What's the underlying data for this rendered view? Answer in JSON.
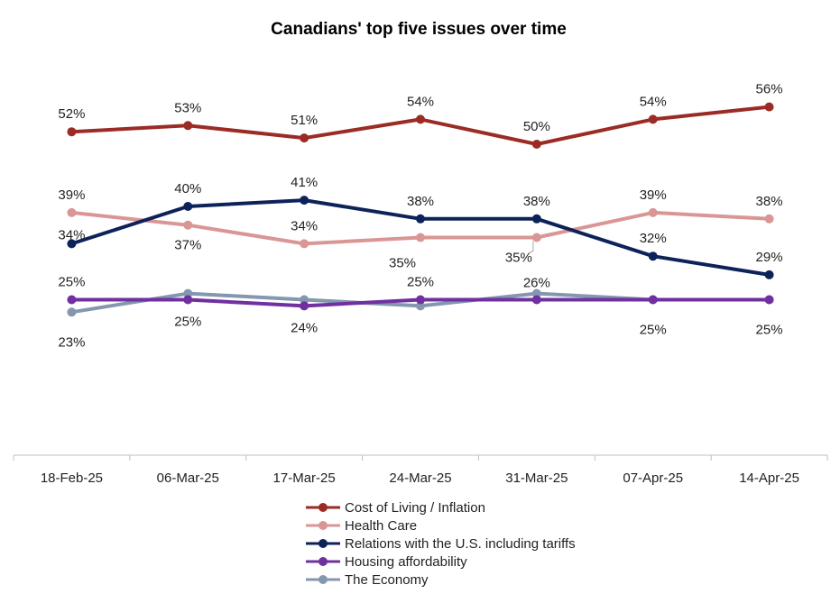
{
  "chart_data": {
    "type": "line",
    "title": "Canadians' top five issues over time",
    "xlabel": "",
    "ylabel": "",
    "categories": [
      "18-Feb-25",
      "06-Mar-25",
      "17-Mar-25",
      "24-Mar-25",
      "31-Mar-25",
      "07-Apr-25",
      "14-Apr-25"
    ],
    "ylim": [
      0,
      60
    ],
    "grid": false,
    "legend_position": "bottom",
    "series": [
      {
        "name": "Cost of Living / Inflation",
        "color": "#9B2B25",
        "values": [
          52,
          53,
          51,
          54,
          50,
          54,
          56
        ],
        "labels": [
          "52%",
          "53%",
          "51%",
          "54%",
          "50%",
          "54%",
          "56%"
        ]
      },
      {
        "name": "Health Care",
        "color": "#D99694",
        "values": [
          39,
          37,
          34,
          35,
          35,
          39,
          38
        ],
        "labels": [
          "39%",
          "37%",
          "34%",
          "35%",
          "35%",
          "39%",
          "38%"
        ]
      },
      {
        "name": "Relations with the U.S. including tariffs",
        "color": "#0D2259",
        "values": [
          34,
          40,
          41,
          38,
          38,
          32,
          29
        ],
        "labels": [
          "34%",
          "40%",
          "41%",
          "38%",
          "38%",
          "32%",
          "29%"
        ]
      },
      {
        "name": "Housing affordability",
        "color": "#7030A0",
        "values": [
          25,
          25,
          24,
          25,
          25,
          25,
          25
        ],
        "labels": [
          "25%",
          "25%",
          "24%",
          "25%",
          "",
          "25%",
          ""
        ]
      },
      {
        "name": "The Economy",
        "color": "#8497B0",
        "values": [
          23,
          26,
          25,
          24,
          26,
          25,
          25
        ],
        "labels": [
          "23%",
          "",
          "",
          "",
          "26%",
          "",
          "25%"
        ]
      }
    ]
  }
}
